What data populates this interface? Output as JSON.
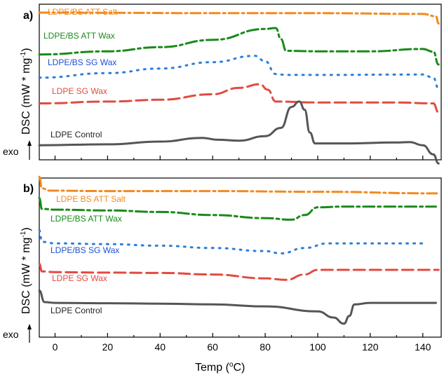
{
  "chart_data": [
    {
      "panel": "a)",
      "type": "line",
      "ylabel_main": "DSC (mW * mg",
      "ylabel_sup": "-1",
      "ylabel_close": ")",
      "exo_label": "exo",
      "xlim": [
        -6,
        147
      ],
      "series": [
        {
          "name": "LDPE/BS ATT Salt",
          "color": "#f28a1e",
          "dash": "14,5,3,5",
          "points": [
            [
              -6,
              0.0
            ],
            [
              20,
              0.02
            ],
            [
              60,
              0.06
            ],
            [
              100,
              0.06
            ],
            [
              140,
              0.15
            ],
            [
              145,
              0.4
            ],
            [
              146,
              1.2
            ]
          ]
        },
        {
          "name": "LDPE/BS ATT Wax",
          "color": "#1a8a1a",
          "dash": "16,5,4,5",
          "points": [
            [
              -6,
              0.9
            ],
            [
              20,
              0.55
            ],
            [
              40,
              0.1
            ],
            [
              60,
              -0.7
            ],
            [
              80,
              -1.9
            ],
            [
              84,
              -2.0
            ],
            [
              86,
              -0.8
            ],
            [
              88,
              0.5
            ],
            [
              100,
              0.55
            ],
            [
              120,
              0.55
            ],
            [
              140,
              0.3
            ],
            [
              144,
              0.6
            ],
            [
              146,
              2.0
            ]
          ]
        },
        {
          "name": "LDPE/BS SG Wax",
          "color": "#2a7fd6",
          "dash": "2,8",
          "points": [
            [
              -6,
              0.6
            ],
            [
              20,
              0.1
            ],
            [
              40,
              -0.4
            ],
            [
              60,
              -1.1
            ],
            [
              76,
              -1.8
            ],
            [
              80,
              -1.2
            ],
            [
              84,
              0.2
            ],
            [
              88,
              0.3
            ],
            [
              100,
              0.3
            ],
            [
              140,
              0.25
            ],
            [
              144,
              0.6
            ],
            [
              146,
              1.8
            ]
          ]
        },
        {
          "name": "LDPE SG Wax",
          "color": "#e24a42",
          "dash": "16,7",
          "points": [
            [
              -6,
              0.5
            ],
            [
              20,
              0.3
            ],
            [
              40,
              0.1
            ],
            [
              60,
              -0.5
            ],
            [
              70,
              -1.2
            ],
            [
              78,
              -1.6
            ],
            [
              81,
              -1.0
            ],
            [
              84,
              0.3
            ],
            [
              100,
              0.4
            ],
            [
              130,
              0.4
            ],
            [
              144,
              0.5
            ],
            [
              146,
              1.5
            ]
          ]
        },
        {
          "name": "LDPE Control",
          "color": "#555555",
          "dash": "",
          "points": [
            [
              -6,
              0.4
            ],
            [
              20,
              0.3
            ],
            [
              40,
              0.0
            ],
            [
              56,
              -0.4
            ],
            [
              62,
              -0.2
            ],
            [
              70,
              -0.1
            ],
            [
              80,
              -0.6
            ],
            [
              86,
              -1.5
            ],
            [
              90,
              -3.8
            ],
            [
              93,
              -4.4
            ],
            [
              95,
              -3.5
            ],
            [
              97,
              -1.0
            ],
            [
              99,
              0.2
            ],
            [
              110,
              0.2
            ],
            [
              130,
              0.1
            ],
            [
              135,
              0.05
            ],
            [
              140,
              0.4
            ],
            [
              144,
              1.4
            ],
            [
              146,
              2.4
            ]
          ]
        }
      ]
    },
    {
      "panel": "b)",
      "type": "line",
      "ylabel_main": "DSC (mW * mg",
      "ylabel_sup": "-1",
      "ylabel_close": ")",
      "exo_label": "exo",
      "xlabel_main": "Temp (",
      "xlabel_sup": "o",
      "xlabel_close": "C)",
      "xlim": [
        -6,
        147
      ],
      "xticks": [
        0,
        20,
        40,
        60,
        80,
        100,
        120,
        140
      ],
      "series": [
        {
          "name": "LDPE BS ATT Salt",
          "color": "#f28a1e",
          "dash": "14,5,3,5",
          "points": [
            [
              -6,
              -1.8
            ],
            [
              -5,
              -0.3
            ],
            [
              -2,
              0.0
            ],
            [
              20,
              0.05
            ],
            [
              60,
              0.05
            ],
            [
              100,
              0.15
            ],
            [
              146,
              0.35
            ]
          ]
        },
        {
          "name": "LDPE/BS ATT Wax",
          "color": "#1a8a1a",
          "dash": "16,5,4,5",
          "points": [
            [
              -6,
              -1.4
            ],
            [
              -5,
              0.0
            ],
            [
              0,
              0.1
            ],
            [
              20,
              0.2
            ],
            [
              40,
              0.4
            ],
            [
              60,
              0.8
            ],
            [
              80,
              1.2
            ],
            [
              90,
              1.4
            ],
            [
              95,
              0.8
            ],
            [
              100,
              -0.2
            ],
            [
              110,
              -0.3
            ],
            [
              145,
              -0.3
            ]
          ]
        },
        {
          "name": "LDPE/BS SG Wax",
          "color": "#2a7fd6",
          "dash": "2,8",
          "points": [
            [
              -6,
              -1.5
            ],
            [
              -5,
              0.0
            ],
            [
              0,
              0.2
            ],
            [
              20,
              0.3
            ],
            [
              40,
              0.5
            ],
            [
              60,
              0.8
            ],
            [
              80,
              1.2
            ],
            [
              86,
              1.5
            ],
            [
              95,
              0.8
            ],
            [
              104,
              0.2
            ],
            [
              120,
              0.2
            ],
            [
              140,
              0.2
            ]
          ]
        },
        {
          "name": "LDPE SG Wax",
          "color": "#e24a42",
          "dash": "16,7",
          "points": [
            [
              -6,
              -0.8
            ],
            [
              -5,
              0.2
            ],
            [
              0,
              0.3
            ],
            [
              20,
              0.35
            ],
            [
              40,
              0.4
            ],
            [
              60,
              0.6
            ],
            [
              80,
              1.1
            ],
            [
              88,
              1.3
            ],
            [
              95,
              0.6
            ],
            [
              100,
              0.0
            ],
            [
              120,
              0.0
            ],
            [
              146,
              0.0
            ]
          ]
        },
        {
          "name": "LDPE Control",
          "color": "#555555",
          "dash": "",
          "points": [
            [
              -6,
              -1.5
            ],
            [
              -4,
              0.0
            ],
            [
              0,
              0.1
            ],
            [
              20,
              0.15
            ],
            [
              40,
              0.2
            ],
            [
              60,
              0.3
            ],
            [
              80,
              0.55
            ],
            [
              100,
              1.2
            ],
            [
              106,
              2.0
            ],
            [
              110,
              2.8
            ],
            [
              112,
              1.8
            ],
            [
              114,
              0.3
            ],
            [
              120,
              0.1
            ],
            [
              145,
              0.1
            ]
          ]
        }
      ]
    }
  ]
}
